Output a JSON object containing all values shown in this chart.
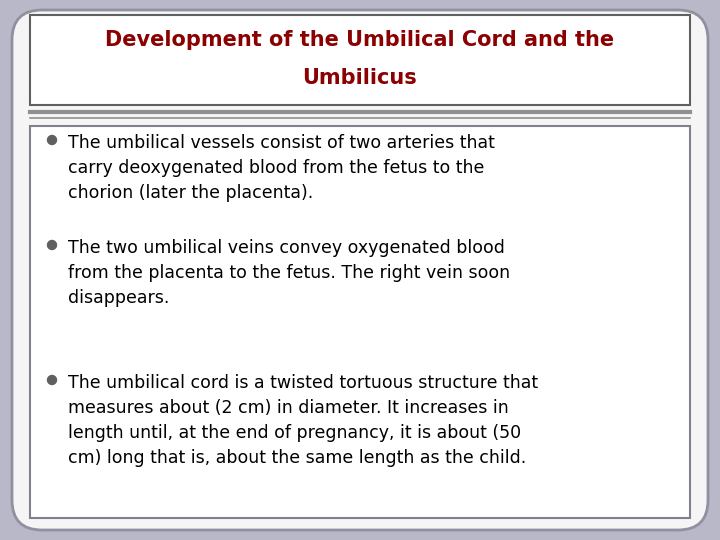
{
  "title_line1": "Development of the Umbilical Cord and the",
  "title_line2": "Umbilicus",
  "title_color": "#8B0000",
  "title_fontsize": 15,
  "bullet_points": [
    "The umbilical vessels consist of two arteries that\ncarry deoxygenated blood from the fetus to the\nchorion (later the placenta).",
    "The two umbilical veins convey oxygenated blood\nfrom the placenta to the fetus. The right vein soon\ndisappears.",
    "The umbilical cord is a twisted tortuous structure that\nmeasures about (2 cm) in diameter. It increases in\nlength until, at the end of pregnancy, it is about (50\ncm) long that is, about the same length as the child."
  ],
  "bullet_fontsize": 12.5,
  "bullet_color": "#000000",
  "outer_bg": "#b8b8c8",
  "slide_bg": "#f5f5f5",
  "outer_border_color": "#9090a0",
  "content_border_color": "#808090",
  "title_box_border": "#606060",
  "separator_color": "#909090",
  "bullet_dot_color": "#606060"
}
